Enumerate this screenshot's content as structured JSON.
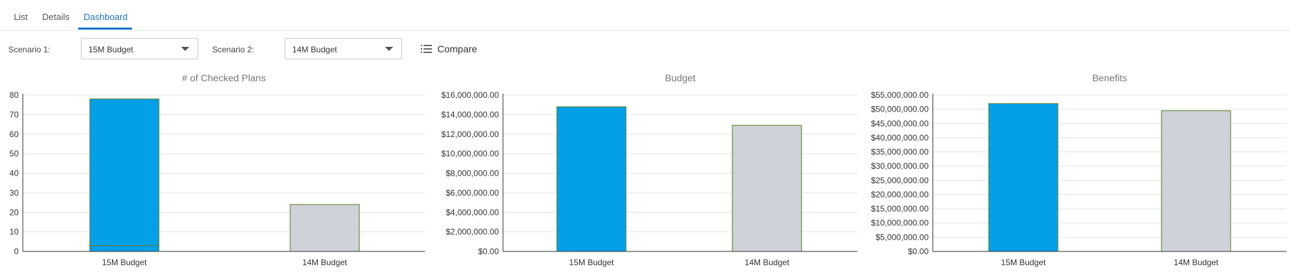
{
  "tabs": [
    {
      "label": "List",
      "active": false
    },
    {
      "label": "Details",
      "active": false
    },
    {
      "label": "Dashboard",
      "active": true
    }
  ],
  "toolbar": {
    "scenario1_label": "Scenario 1:",
    "scenario1_value": "15M Budget",
    "scenario2_label": "Scenario 2:",
    "scenario2_value": "14M Budget",
    "compare_label": "Compare",
    "compare_icon": "list-icon"
  },
  "colors": {
    "bar_primary": "#03a0e8",
    "bar_secondary": "#cfd2d8",
    "bar_outline": "#5a7a1e",
    "accent": "#1a73c7"
  },
  "chart_data": [
    {
      "type": "bar",
      "title": "# of Checked Plans",
      "categories": [
        "15M Budget",
        "14M Budget"
      ],
      "values": [
        78,
        24
      ],
      "overlay_line": 3,
      "ylim": [
        0,
        80
      ],
      "yticks": [
        0,
        10,
        20,
        30,
        40,
        50,
        60,
        70,
        80
      ],
      "ytick_labels": [
        "0",
        "10",
        "20",
        "30",
        "40",
        "50",
        "60",
        "70",
        "80"
      ],
      "grid": true
    },
    {
      "type": "bar",
      "title": "Budget",
      "categories": [
        "15M Budget",
        "14M Budget"
      ],
      "values": [
        14800000,
        12900000
      ],
      "ylim": [
        0,
        16000000
      ],
      "yticks": [
        0,
        2000000,
        4000000,
        6000000,
        8000000,
        10000000,
        12000000,
        14000000,
        16000000
      ],
      "ytick_labels": [
        "$0.00",
        "$2,000,000.00",
        "$4,000,000.00",
        "$6,000,000.00",
        "$8,000,000.00",
        "$10,000,000.00",
        "$12,000,000.00",
        "$14,000,000.00",
        "$16,000,000.00"
      ],
      "grid": true
    },
    {
      "type": "bar",
      "title": "Benefits",
      "categories": [
        "15M Budget",
        "14M Budget"
      ],
      "values": [
        52000000,
        49500000
      ],
      "ylim": [
        0,
        55000000
      ],
      "yticks": [
        0,
        5000000,
        10000000,
        15000000,
        20000000,
        25000000,
        30000000,
        35000000,
        40000000,
        45000000,
        50000000,
        55000000
      ],
      "ytick_labels": [
        "$0.00",
        "$5,000,000.00",
        "$10,000,000.00",
        "$15,000,000.00",
        "$20,000,000.00",
        "$25,000,000.00",
        "$30,000,000.00",
        "$35,000,000.00",
        "$40,000,000.00",
        "$45,000,000.00",
        "$50,000,000.00",
        "$55,000,000.00"
      ],
      "grid": true
    }
  ]
}
